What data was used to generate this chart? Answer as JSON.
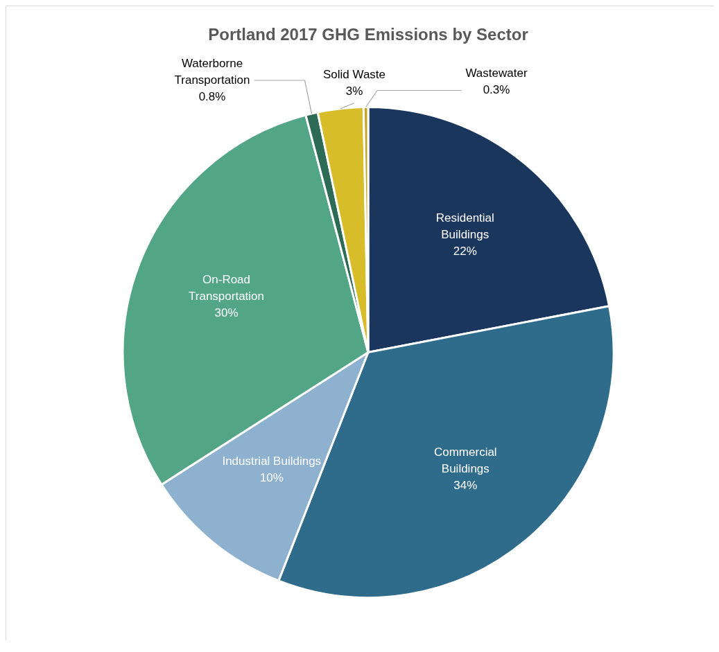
{
  "chart_data": {
    "type": "pie",
    "title": "Portland 2017 GHG Emissions by Sector",
    "categories": [
      "Residential Buildings",
      "Commercial Buildings",
      "Industrial Buildings",
      "On-Road Transportation",
      "Waterborne Transportation",
      "Solid Waste",
      "Wastewater"
    ],
    "values": [
      22,
      34,
      10,
      30,
      0.8,
      3,
      0.3
    ],
    "colors": [
      "#1b365d",
      "#2f6b8a",
      "#8db1cf",
      "#52a585",
      "#2e6b57",
      "#d8bd2a",
      "#c9a227"
    ],
    "value_labels": [
      "22%",
      "34%",
      "10%",
      "30%",
      "0.8%",
      "3%",
      "0.3%"
    ],
    "legend": false
  }
}
